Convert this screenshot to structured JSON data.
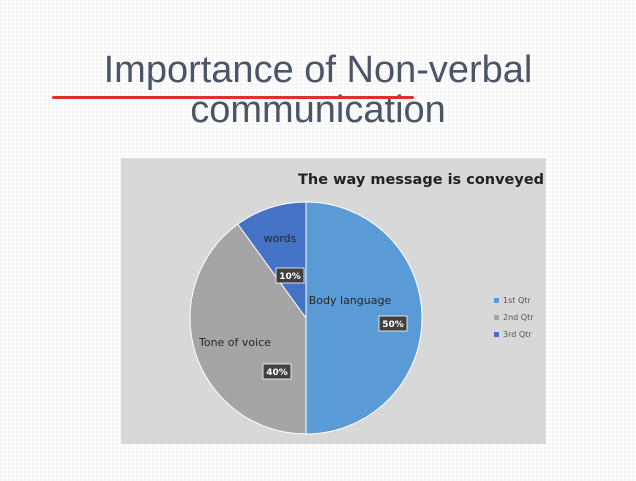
{
  "slide": {
    "title_line1": "Importance of Non-verbal",
    "title_line2": "communication"
  },
  "chart_data": {
    "type": "pie",
    "title": "The way message is conveyed",
    "slices": [
      {
        "label": "Body language",
        "value": 50,
        "value_label": "50%",
        "color": "#5b9bd5"
      },
      {
        "label": "Tone of voice",
        "value": 40,
        "value_label": "40%",
        "color": "#a5a5a5"
      },
      {
        "label": "words",
        "value": 10,
        "value_label": "10%",
        "color": "#4472c4"
      }
    ],
    "legend": {
      "position": "right",
      "entries": [
        {
          "name": "1st Qtr",
          "color": "#5b9bd5"
        },
        {
          "name": "2nd Qtr",
          "color": "#a5a5a5"
        },
        {
          "name": "3rd Qtr",
          "color": "#4472c4"
        }
      ]
    }
  }
}
